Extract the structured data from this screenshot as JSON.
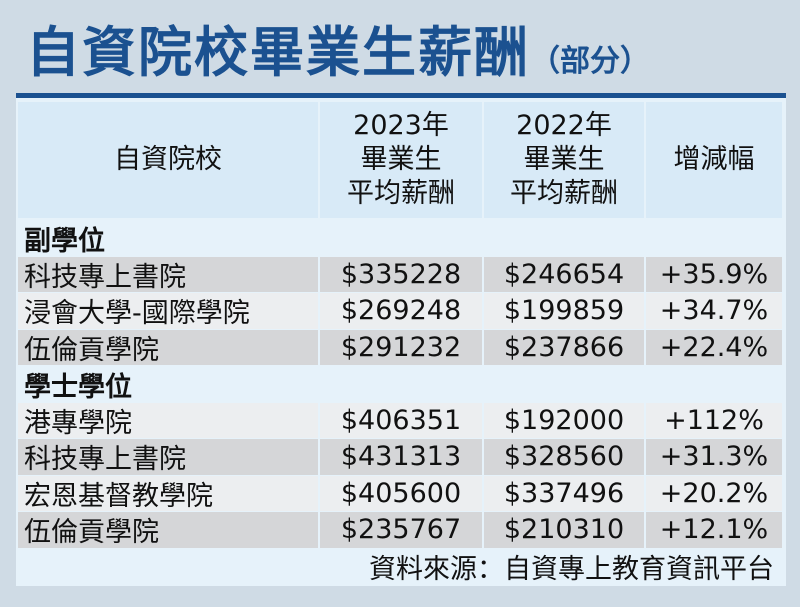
{
  "title": "自資院校畢業生薪酬",
  "title_note": "（部分）",
  "table": {
    "header": [
      [
        "自資院校"
      ],
      [
        "2023年",
        "畢業生",
        "平均薪酬"
      ],
      [
        "2022年",
        "畢業生",
        "平均薪酬"
      ],
      [
        "增減幅"
      ]
    ],
    "sections": [
      {
        "label": "副學位",
        "rows": [
          [
            "科技專上書院",
            "$335228",
            "$246654",
            "+35.9%"
          ],
          [
            "浸會大學-國際學院",
            "$269248",
            "$199859",
            "+34.7%"
          ],
          [
            "伍倫貢學院",
            "$291232",
            "$237866",
            "+22.4%"
          ]
        ]
      },
      {
        "label": "學士學位",
        "rows": [
          [
            "港專學院",
            "$406351",
            "$192000",
            "+112%"
          ],
          [
            "科技專上書院",
            "$431313",
            "$328560",
            "+31.3%"
          ],
          [
            "宏恩基督教學院",
            "$405600",
            "$337496",
            "+20.2%"
          ],
          [
            "伍倫貢學院",
            "$235767",
            "$210310",
            "+12.1%"
          ]
        ]
      }
    ]
  },
  "source": "資料來源：自資專上教育資訊平台"
}
